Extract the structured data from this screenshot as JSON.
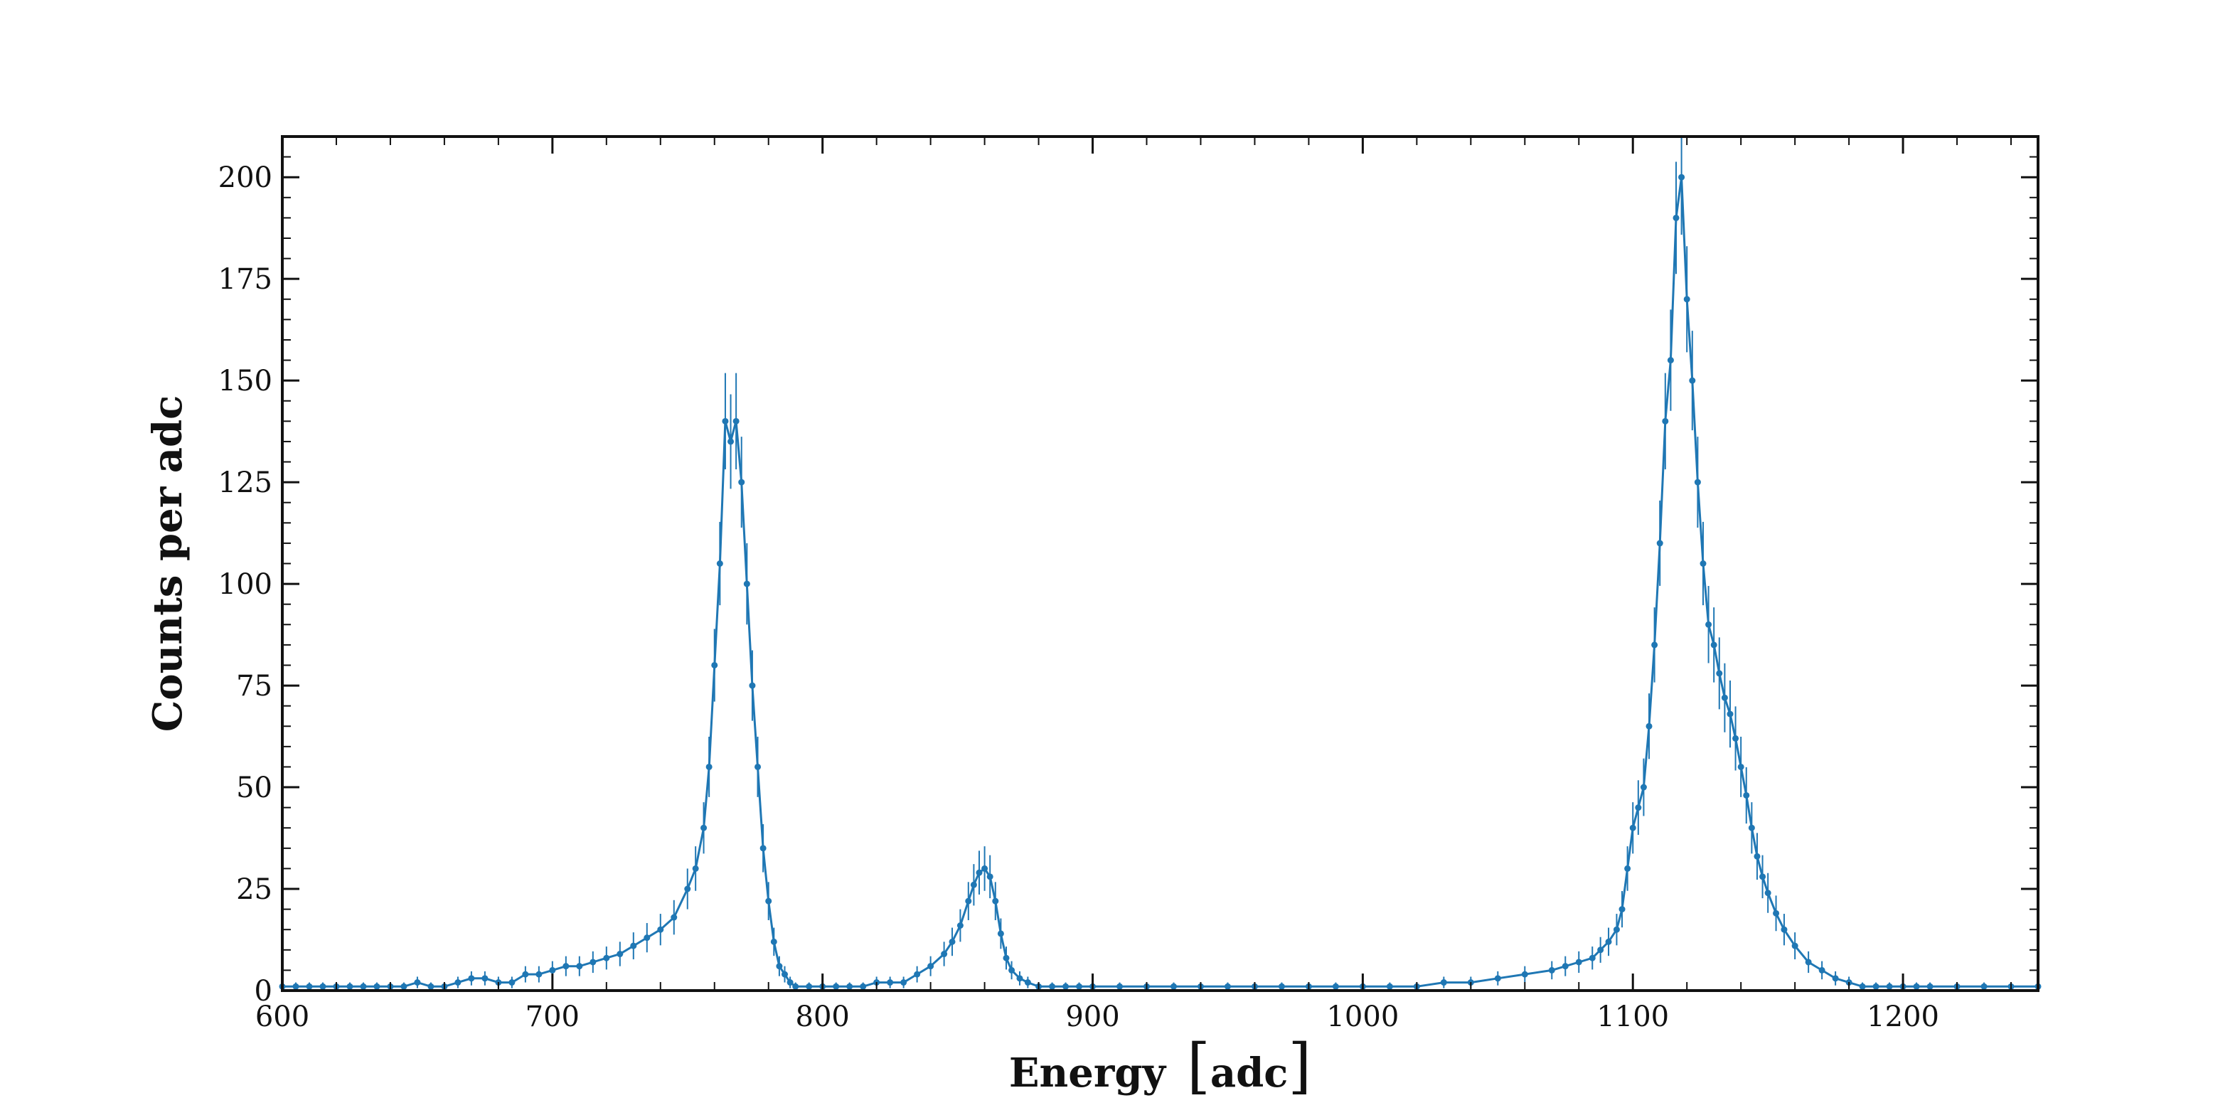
{
  "chart_data": {
    "type": "line",
    "title": "",
    "xlabel": "Energy",
    "xlabel_unit": "adc",
    "ylabel": "Counts per adc",
    "xlim": [
      600,
      1250
    ],
    "ylim": [
      0,
      210
    ],
    "xticks": [
      600,
      700,
      800,
      900,
      1000,
      1100,
      1200
    ],
    "yticks": [
      0,
      25,
      50,
      75,
      100,
      125,
      150,
      175,
      200
    ],
    "grid": false,
    "legend": "none",
    "color": "#1f77b4",
    "series": [
      {
        "name": "",
        "error_bars": true,
        "x": [
          600,
          605,
          610,
          615,
          620,
          625,
          630,
          635,
          640,
          645,
          650,
          655,
          660,
          665,
          670,
          675,
          680,
          685,
          690,
          695,
          700,
          705,
          710,
          715,
          720,
          725,
          730,
          735,
          740,
          745,
          750,
          753,
          756,
          758,
          760,
          762,
          764,
          766,
          768,
          770,
          772,
          774,
          776,
          778,
          780,
          782,
          784,
          786,
          788,
          790,
          795,
          800,
          805,
          810,
          815,
          820,
          825,
          830,
          835,
          840,
          845,
          848,
          851,
          854,
          856,
          858,
          860,
          862,
          864,
          866,
          868,
          870,
          873,
          876,
          880,
          885,
          890,
          895,
          900,
          910,
          920,
          930,
          940,
          950,
          960,
          970,
          980,
          990,
          1000,
          1010,
          1020,
          1030,
          1040,
          1050,
          1060,
          1070,
          1075,
          1080,
          1085,
          1088,
          1091,
          1094,
          1096,
          1098,
          1100,
          1102,
          1104,
          1106,
          1108,
          1110,
          1112,
          1114,
          1116,
          1118,
          1120,
          1122,
          1124,
          1126,
          1128,
          1130,
          1132,
          1134,
          1136,
          1138,
          1140,
          1142,
          1144,
          1146,
          1148,
          1150,
          1153,
          1156,
          1160,
          1165,
          1170,
          1175,
          1180,
          1185,
          1190,
          1195,
          1200,
          1205,
          1210,
          1220,
          1230,
          1240,
          1250
        ],
        "y": [
          1,
          1,
          1,
          1,
          1,
          1,
          1,
          1,
          1,
          1,
          2,
          1,
          1,
          2,
          3,
          3,
          2,
          2,
          4,
          4,
          5,
          6,
          6,
          7,
          8,
          9,
          11,
          13,
          15,
          18,
          25,
          30,
          40,
          55,
          80,
          105,
          140,
          135,
          140,
          125,
          100,
          75,
          55,
          35,
          22,
          12,
          6,
          4,
          2,
          1,
          1,
          1,
          1,
          1,
          1,
          2,
          2,
          2,
          4,
          6,
          9,
          12,
          16,
          22,
          26,
          29,
          30,
          28,
          22,
          14,
          8,
          5,
          3,
          2,
          1,
          1,
          1,
          1,
          1,
          1,
          1,
          1,
          1,
          1,
          1,
          1,
          1,
          1,
          1,
          1,
          1,
          2,
          2,
          3,
          4,
          5,
          6,
          7,
          8,
          10,
          12,
          15,
          20,
          30,
          40,
          45,
          50,
          65,
          85,
          110,
          140,
          155,
          190,
          200,
          170,
          150,
          125,
          105,
          90,
          85,
          78,
          72,
          68,
          62,
          55,
          48,
          40,
          33,
          28,
          24,
          19,
          15,
          11,
          7,
          5,
          3,
          2,
          1,
          1,
          1,
          1,
          1,
          1,
          1,
          1,
          1,
          1
        ]
      }
    ]
  }
}
